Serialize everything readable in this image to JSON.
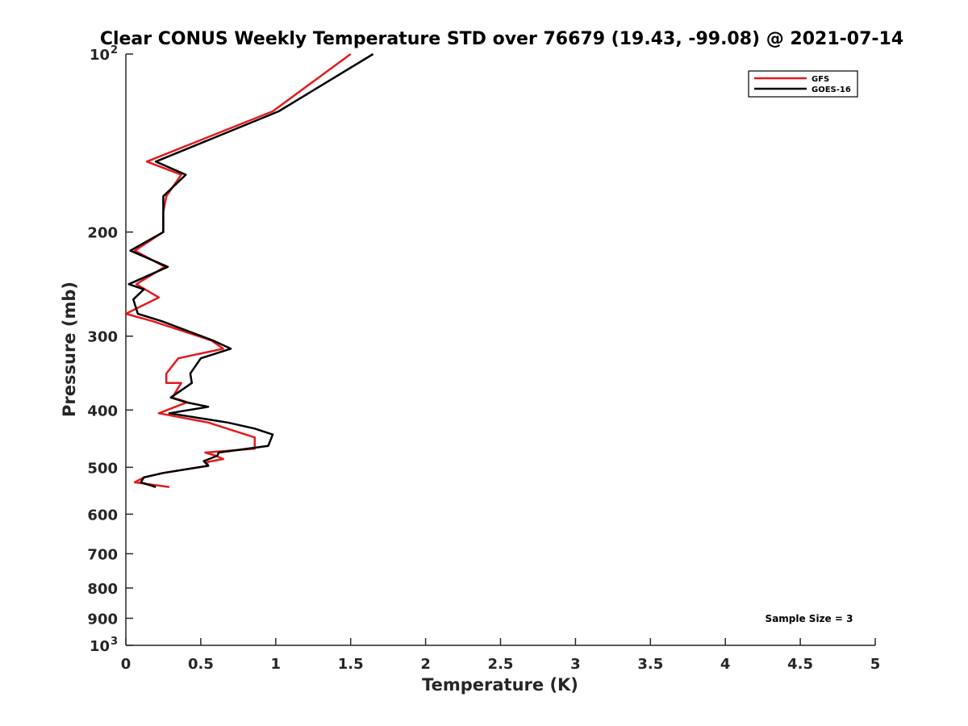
{
  "chart_data": {
    "type": "line",
    "title": "Clear CONUS Weekly Temperature STD over 76679 (19.43, -99.08) @ 2021-07-14",
    "xlabel": "Temperature (K)",
    "ylabel": "Pressure (mb)",
    "xlim": [
      0,
      5
    ],
    "ylim": [
      100,
      1000
    ],
    "y_scale": "log",
    "y_reversed": true,
    "x_ticks": [
      0,
      0.5,
      1,
      1.5,
      2,
      2.5,
      3,
      3.5,
      4,
      4.5,
      5
    ],
    "x_tick_labels": [
      "0",
      "0.5",
      "1",
      "1.5",
      "2",
      "2.5",
      "3",
      "3.5",
      "4",
      "4.5",
      "5"
    ],
    "y_ticks": [
      {
        "value": 100,
        "base": "10",
        "exp": "2"
      },
      {
        "value": 200,
        "label": "200"
      },
      {
        "value": 300,
        "label": "300"
      },
      {
        "value": 400,
        "label": "400"
      },
      {
        "value": 500,
        "label": "500"
      },
      {
        "value": 600,
        "label": "600"
      },
      {
        "value": 700,
        "label": "700"
      },
      {
        "value": 800,
        "label": "800"
      },
      {
        "value": 900,
        "label": "900"
      },
      {
        "value": 1000,
        "base": "10",
        "exp": "3"
      }
    ],
    "grid": false,
    "legend_position": "top-right",
    "series": [
      {
        "name": "GFS",
        "color": "#e31a1c",
        "points": [
          [
            1.5,
            100
          ],
          [
            0.98,
            125
          ],
          [
            0.14,
            152
          ],
          [
            0.37,
            160
          ],
          [
            0.27,
            174
          ],
          [
            0.25,
            185
          ],
          [
            0.25,
            200
          ],
          [
            0.06,
            215
          ],
          [
            0.26,
            229
          ],
          [
            0.07,
            245
          ],
          [
            0.22,
            258
          ],
          [
            0.0,
            275
          ],
          [
            0.18,
            283
          ],
          [
            0.57,
            305
          ],
          [
            0.65,
            315
          ],
          [
            0.35,
            327
          ],
          [
            0.27,
            347
          ],
          [
            0.27,
            360
          ],
          [
            0.37,
            360
          ],
          [
            0.31,
            381
          ],
          [
            0.41,
            388
          ],
          [
            0.22,
            405
          ],
          [
            0.55,
            420
          ],
          [
            0.8,
            440
          ],
          [
            0.86,
            445
          ],
          [
            0.86,
            465
          ],
          [
            0.53,
            472
          ],
          [
            0.6,
            478
          ],
          [
            0.65,
            484
          ],
          [
            0.54,
            490
          ],
          [
            0.55,
            497
          ],
          [
            0.25,
            511
          ],
          [
            0.12,
            520
          ],
          [
            0.06,
            530
          ],
          [
            0.29,
            540
          ]
        ]
      },
      {
        "name": "GOES-16",
        "color": "#000000",
        "points": [
          [
            1.65,
            100
          ],
          [
            1.02,
            125
          ],
          [
            0.2,
            152
          ],
          [
            0.4,
            160
          ],
          [
            0.25,
            174
          ],
          [
            0.25,
            185
          ],
          [
            0.25,
            200
          ],
          [
            0.03,
            215
          ],
          [
            0.28,
            229
          ],
          [
            0.02,
            245
          ],
          [
            0.12,
            250
          ],
          [
            0.05,
            260
          ],
          [
            0.08,
            275
          ],
          [
            0.24,
            283
          ],
          [
            0.58,
            305
          ],
          [
            0.7,
            315
          ],
          [
            0.5,
            327
          ],
          [
            0.43,
            347
          ],
          [
            0.44,
            360
          ],
          [
            0.3,
            381
          ],
          [
            0.4,
            388
          ],
          [
            0.55,
            395
          ],
          [
            0.29,
            405
          ],
          [
            0.68,
            420
          ],
          [
            0.86,
            430
          ],
          [
            0.98,
            440
          ],
          [
            0.95,
            460
          ],
          [
            0.62,
            472
          ],
          [
            0.61,
            478
          ],
          [
            0.52,
            488
          ],
          [
            0.55,
            497
          ],
          [
            0.25,
            511
          ],
          [
            0.12,
            520
          ],
          [
            0.1,
            530
          ],
          [
            0.2,
            540
          ]
        ]
      }
    ],
    "annotation": "Sample Size = 3"
  }
}
